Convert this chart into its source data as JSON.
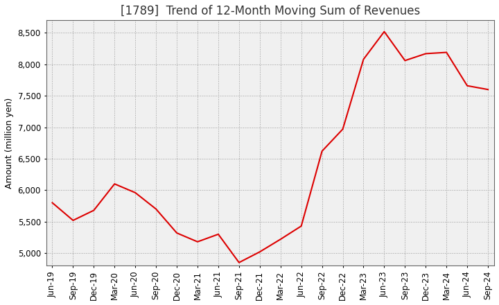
{
  "title": "[1789]  Trend of 12-Month Moving Sum of Revenues",
  "ylabel": "Amount (million yen)",
  "x_labels": [
    "Jun-19",
    "Sep-19",
    "Dec-19",
    "Mar-20",
    "Jun-20",
    "Sep-20",
    "Dec-20",
    "Mar-21",
    "Jun-21",
    "Sep-21",
    "Dec-21",
    "Mar-22",
    "Jun-22",
    "Sep-22",
    "Dec-22",
    "Mar-23",
    "Jun-23",
    "Sep-23",
    "Dec-23",
    "Mar-24",
    "Jun-24",
    "Sep-24"
  ],
  "values": [
    5800,
    5520,
    5680,
    6100,
    5960,
    5700,
    5320,
    5180,
    5300,
    4850,
    5020,
    5220,
    5430,
    6620,
    6970,
    8080,
    8520,
    8060,
    8170,
    8190,
    7660,
    7600
  ],
  "line_color": "#dd0000",
  "background_color": "#ffffff",
  "plot_bg_color": "#f0f0f0",
  "grid_color": "#999999",
  "ylim_min": 4800,
  "ylim_max": 8700,
  "title_fontsize": 12,
  "label_fontsize": 9,
  "tick_fontsize": 8.5
}
